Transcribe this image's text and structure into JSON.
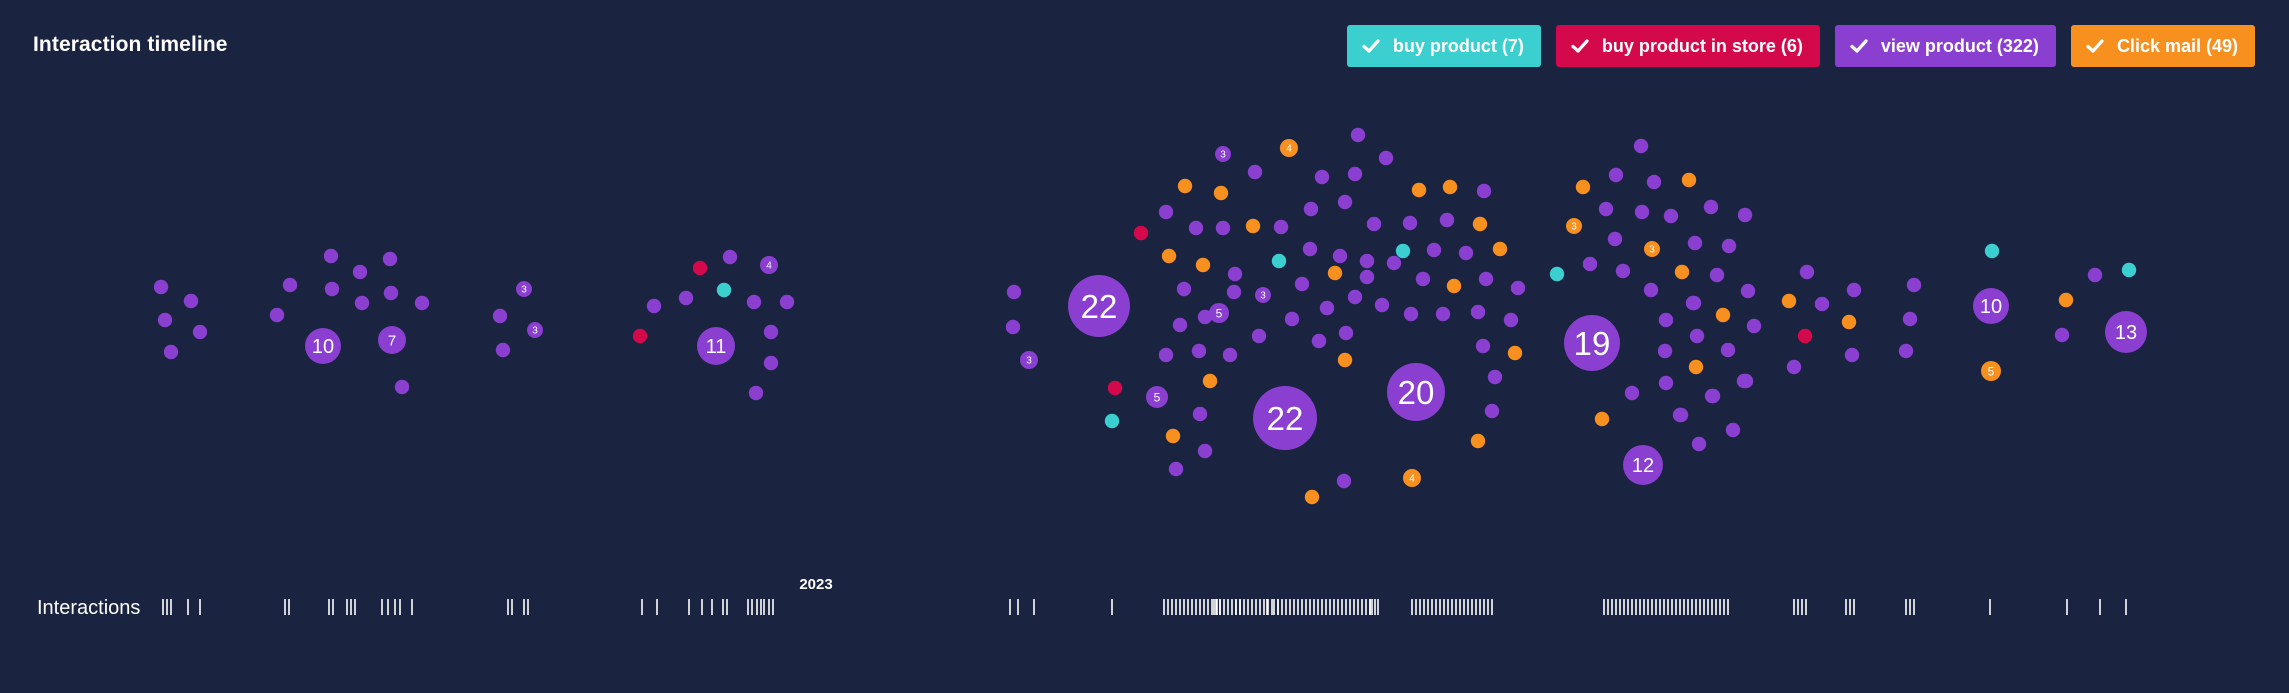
{
  "title": "Interaction timeline",
  "legend": [
    {
      "label": "buy product (7)",
      "color": "#3ccfcf",
      "icon": "check-icon"
    },
    {
      "label": "buy product in store (6)",
      "color": "#d3094b",
      "icon": "check-icon"
    },
    {
      "label": "view product (322)",
      "color": "#8a3fd0",
      "icon": "check-icon"
    },
    {
      "label": "Click mail (49)",
      "color": "#f7901e",
      "icon": "check-icon"
    }
  ],
  "timeline": {
    "row_label": "Interactions",
    "year_label": "2023"
  },
  "chart_data": {
    "type": "scatter",
    "title": "Interaction timeline",
    "series_colors": {
      "buy product": "#3ccfcf",
      "buy product in store": "#d3094b",
      "view product": "#8a3fd0",
      "Click mail": "#f7901e"
    },
    "clusters": [
      {
        "count": 22,
        "type": "view product"
      },
      {
        "count": 22,
        "type": "view product"
      },
      {
        "count": 20,
        "type": "view product"
      },
      {
        "count": 19,
        "type": "view product"
      },
      {
        "count": 13,
        "type": "view product"
      },
      {
        "count": 12,
        "type": "view product"
      },
      {
        "count": 11,
        "type": "view product"
      },
      {
        "count": 10,
        "type": "view product"
      },
      {
        "count": 10,
        "type": "view product"
      },
      {
        "count": 7,
        "type": "view product"
      },
      {
        "count": 5,
        "type": "view product"
      },
      {
        "count": 5,
        "type": "view product"
      },
      {
        "count": 5,
        "type": "Click mail"
      },
      {
        "count": 4,
        "type": "view product"
      },
      {
        "count": 4,
        "type": "Click mail"
      },
      {
        "count": 4,
        "type": "Click mail"
      },
      {
        "count": 3,
        "type": "view product"
      },
      {
        "count": 3,
        "type": "view product"
      },
      {
        "count": 3,
        "type": "view product"
      },
      {
        "count": 3,
        "type": "view product"
      },
      {
        "count": 3,
        "type": "view product"
      },
      {
        "count": 3,
        "type": "Click mail"
      },
      {
        "count": 3,
        "type": "Click mail"
      }
    ],
    "x_axis_labels": [
      "2023"
    ],
    "legend_position": "top-right"
  }
}
